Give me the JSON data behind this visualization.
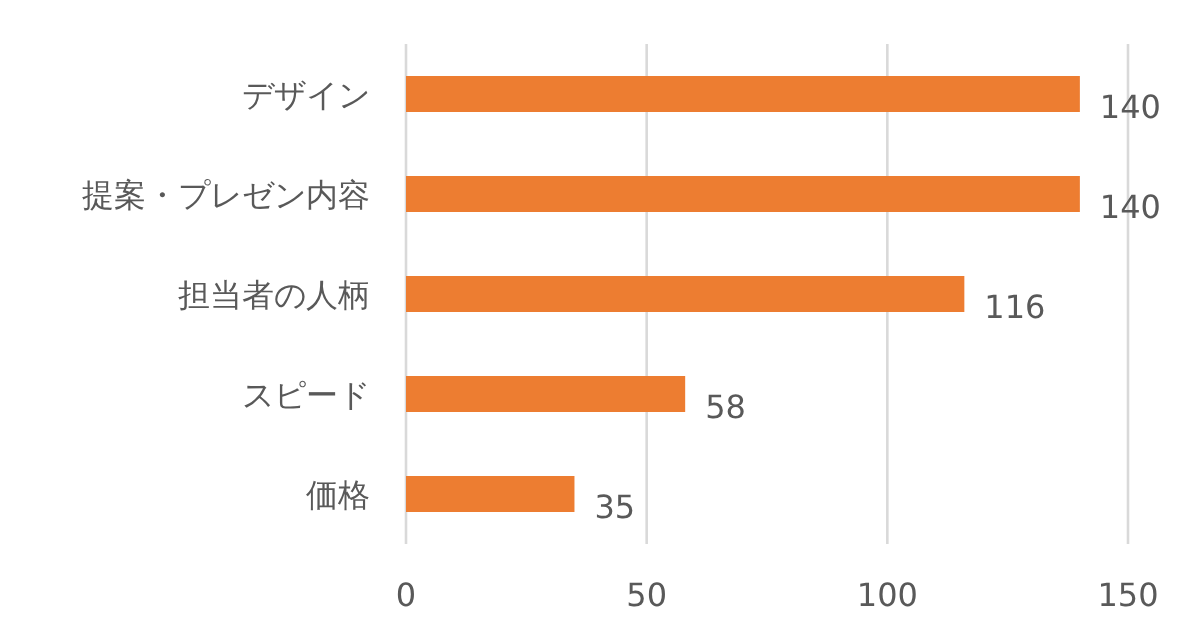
{
  "chart_data": {
    "type": "bar",
    "orientation": "horizontal",
    "categories": [
      "デザイン",
      "提案・プレゼン内容",
      "担当者の人柄",
      "スピード",
      "価格"
    ],
    "values": [
      140,
      140,
      116,
      58,
      35
    ],
    "color": "#ed7d31",
    "xlim": [
      0,
      150
    ],
    "xticks": [
      0,
      50,
      100,
      150
    ],
    "grid": "x",
    "data_labels": true
  }
}
